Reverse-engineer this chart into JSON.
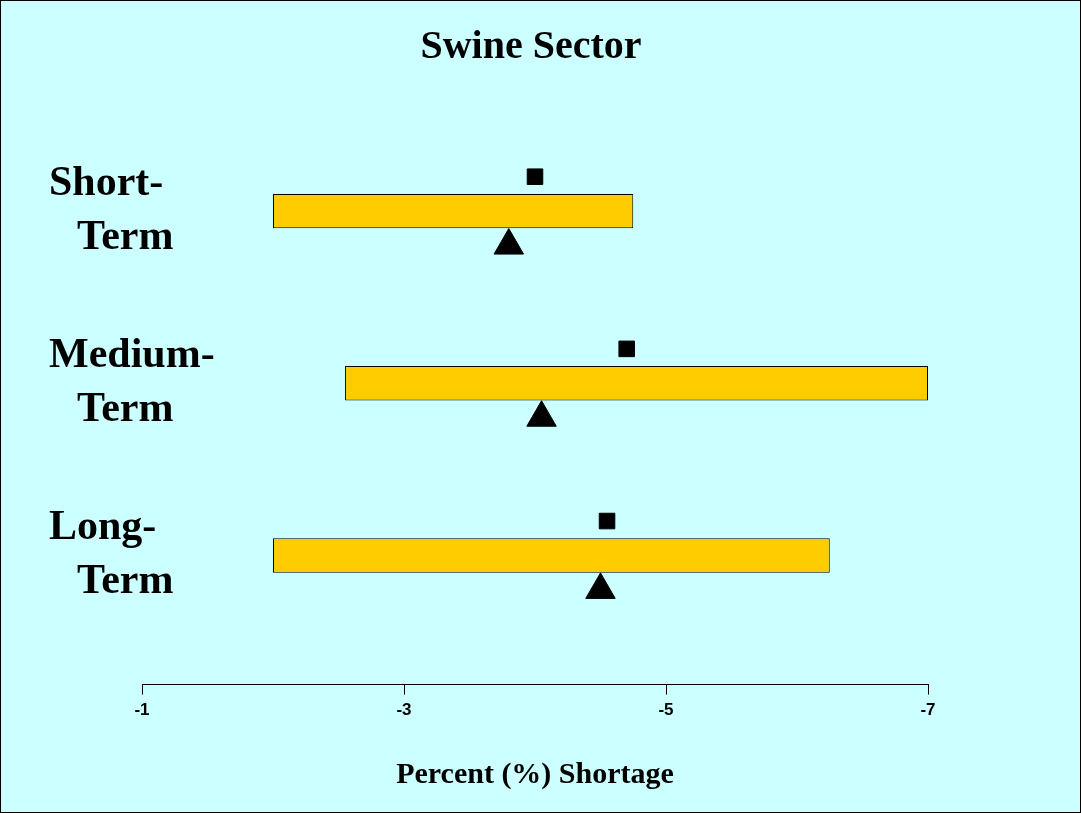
{
  "chart_data": {
    "type": "bar",
    "orientation": "horizontal",
    "title": "Swine Sector",
    "xlabel": "Percent (%) Shortage",
    "categories": [
      "Short-Term",
      "Medium-Term",
      "Long-Term"
    ],
    "xlim": [
      -1,
      -7
    ],
    "xticks": [
      -1,
      -3,
      -5,
      -7
    ],
    "grid": false,
    "legend": false,
    "series": [
      {
        "color": "#ffcc00",
        "base": [
          -2,
          -2.55,
          -2
        ],
        "values": [
          -2.75,
          -4.45,
          -4.25
        ]
      },
      {
        "type": "scatter",
        "marker": "square",
        "color": "#000000",
        "values": [
          -4.0,
          -4.7,
          -4.55
        ]
      },
      {
        "type": "scatter",
        "marker": "triangle",
        "color": "#000000",
        "values": [
          -3.8,
          -4.05,
          -4.5
        ]
      }
    ]
  }
}
